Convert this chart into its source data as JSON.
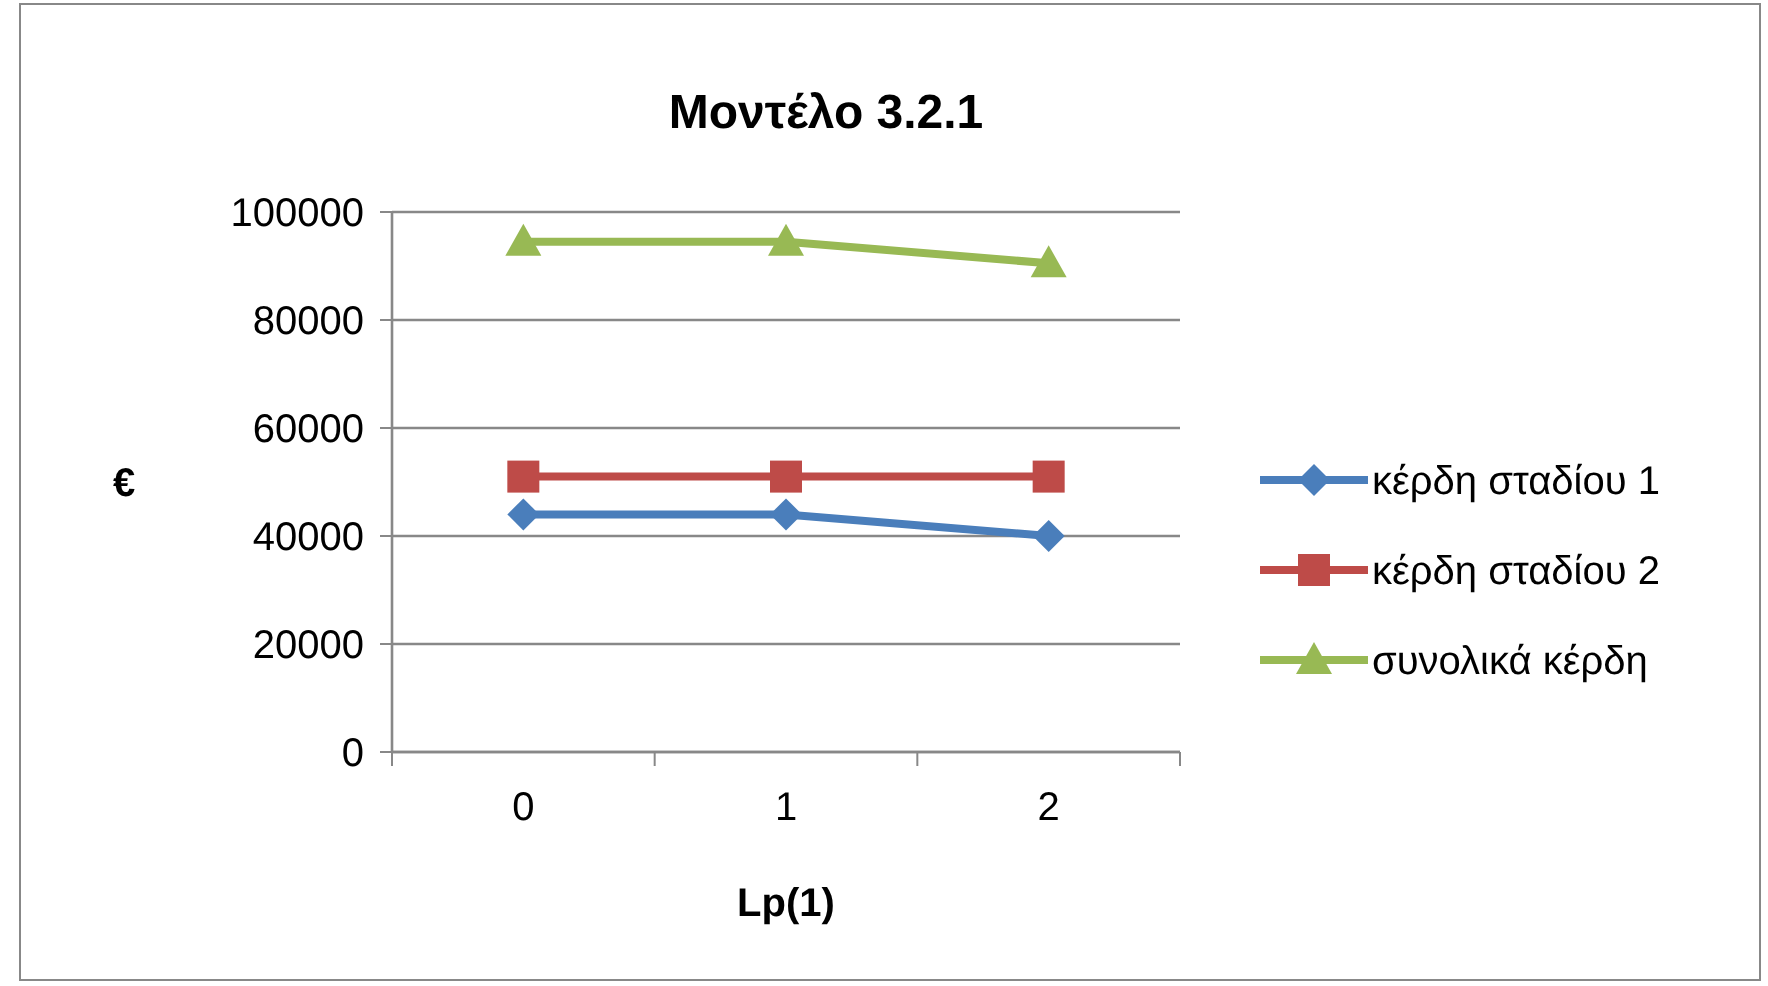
{
  "chart_data": {
    "type": "line",
    "title": "Μοντέλο 3.2.1",
    "xlabel": "Lp(1)",
    "ylabel": "€",
    "categories": [
      "0",
      "1",
      "2"
    ],
    "series": [
      {
        "name": "κέρδη σταδίου 1",
        "color": "#4a7ebb",
        "values": [
          44000,
          44000,
          40000
        ],
        "marker": "diamond"
      },
      {
        "name": "κέρδη σταδίου 2",
        "color": "#be4b48",
        "values": [
          51000,
          51000,
          51000
        ],
        "marker": "square"
      },
      {
        "name": "συνολικά κέρδη",
        "color": "#98b954",
        "values": [
          94500,
          94500,
          90500
        ],
        "marker": "triangle"
      }
    ],
    "ylim": [
      0,
      100000
    ],
    "yticks": [
      0,
      20000,
      40000,
      60000,
      80000,
      100000
    ],
    "grid": "y",
    "legend": "right",
    "line_style": "solid"
  }
}
